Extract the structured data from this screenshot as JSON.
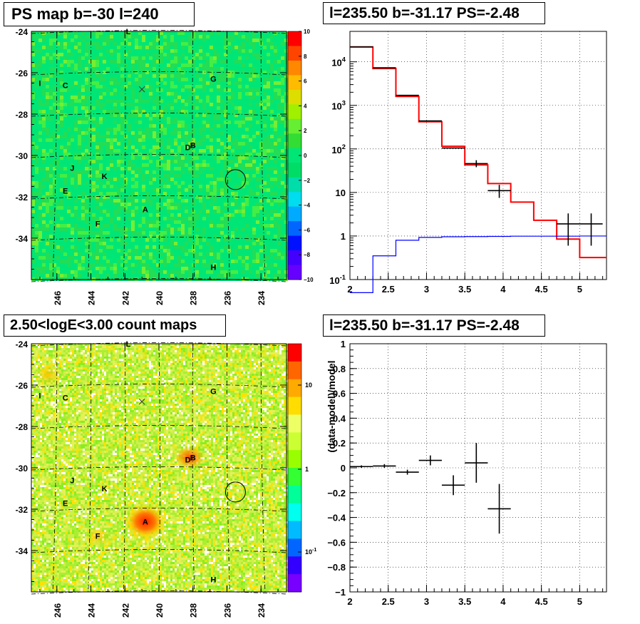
{
  "panels": {
    "psmap_title": "PS map b=-30 l=240",
    "spectrum_title": "l=235.50 b=-31.17 PS=-2.48",
    "countmap_title": "2.50<logE<3.00 count maps",
    "residual_title": "l=235.50 b=-31.17 PS=-2.48"
  },
  "chart_data": [
    {
      "type": "heatmap",
      "name": "ps_map",
      "title": "PS map b=-30 l=240",
      "x_ticks": [
        "246",
        "244",
        "242",
        "240",
        "238",
        "236",
        "234"
      ],
      "y_ticks": [
        "-24",
        "-26",
        "-28",
        "-30",
        "-32",
        "-34"
      ],
      "xlim": [
        247.5,
        232.5
      ],
      "ylim": [
        -36,
        -24
      ],
      "colorbar": {
        "min": -10,
        "max": 10,
        "ticks": [
          "10",
          "8",
          "6",
          "4",
          "2",
          "0",
          "−2",
          "−4",
          "−6",
          "−8",
          "−10"
        ]
      },
      "sources": [
        {
          "label": "L",
          "l": 241.8,
          "b": -24
        },
        {
          "label": "I",
          "l": 247,
          "b": -26.5
        },
        {
          "label": "C",
          "l": 245.5,
          "b": -26.6
        },
        {
          "label": "G",
          "l": 236.8,
          "b": -26.3
        },
        {
          "label": "D",
          "l": 238.3,
          "b": -29.6
        },
        {
          "label": "B",
          "l": 238,
          "b": -29.5
        },
        {
          "label": "J",
          "l": 245.1,
          "b": -30.6
        },
        {
          "label": "K",
          "l": 243.2,
          "b": -31
        },
        {
          "label": "E",
          "l": 245.5,
          "b": -31.7
        },
        {
          "label": "A",
          "l": 240.8,
          "b": -32.6
        },
        {
          "label": "F",
          "l": 243.6,
          "b": -33.3
        },
        {
          "label": "H",
          "l": 236.8,
          "b": -35.4
        }
      ],
      "marker_circle": {
        "l": 235.5,
        "b": -31.17
      },
      "marker_cross": {
        "l": 241,
        "b": -26.8
      }
    },
    {
      "type": "line",
      "name": "spectrum",
      "title": "l=235.50 b=-31.17 PS=-2.48",
      "xlim": [
        2,
        5.35
      ],
      "ylim": [
        0.1,
        50000
      ],
      "log_y": true,
      "x_ticks": [
        "2",
        "2.5",
        "3",
        "3.5",
        "4",
        "4.5",
        "5"
      ],
      "y_ticks": [
        "10^-1",
        "1",
        "10",
        "10^2",
        "10^3",
        "10^4"
      ],
      "grid": true,
      "series": [
        {
          "color": "#ff0000",
          "edges": [
            2,
            2.3,
            2.6,
            2.9,
            3.2,
            3.5,
            3.8,
            4.1,
            4.4,
            4.7,
            5.0,
            5.35
          ],
          "values": [
            22000,
            7000,
            1600,
            420,
            115,
            43,
            16,
            6,
            2.3,
            0.85,
            0.32
          ]
        },
        {
          "color": "#0000ff",
          "edges": [
            2,
            2.3,
            2.6,
            2.9,
            3.2,
            3.5,
            3.8,
            4.1,
            4.4,
            4.7,
            5.0,
            5.35
          ],
          "values": [
            0.05,
            0.35,
            0.8,
            0.93,
            0.96,
            0.97,
            0.98,
            0.99,
            0.99,
            0.99,
            1.0
          ]
        },
        {
          "color": "#000000",
          "points": [
            {
              "x": 2.15,
              "y": 22000,
              "xerr": 0.15
            },
            {
              "x": 2.45,
              "y": 7300,
              "xerr": 0.15
            },
            {
              "x": 2.75,
              "y": 1700,
              "xerr": 0.15
            },
            {
              "x": 3.05,
              "y": 440,
              "xerr": 0.15
            },
            {
              "x": 3.35,
              "y": 105,
              "xerr": 0.15
            },
            {
              "x": 3.65,
              "y": 46,
              "xerr": 0.15,
              "yerr": [
                38,
                55
              ]
            },
            {
              "x": 3.95,
              "y": 11,
              "xerr": 0.15,
              "yerr": [
                7.5,
                15
              ]
            },
            {
              "x": 4.85,
              "y": 1.9,
              "xerr": 0.15,
              "yerr": [
                0.6,
                3.3
              ]
            },
            {
              "x": 5.15,
              "y": 1.9,
              "xerr": 0.15,
              "yerr": [
                0.6,
                3.3
              ]
            }
          ]
        }
      ]
    },
    {
      "type": "heatmap",
      "name": "count_map",
      "title": "2.50<logE<3.00 count maps",
      "x_ticks": [
        "246",
        "244",
        "242",
        "240",
        "238",
        "236",
        "234"
      ],
      "y_ticks": [
        "-24",
        "-26",
        "-28",
        "-30",
        "-32",
        "-34"
      ],
      "xlim": [
        247.5,
        232.5
      ],
      "ylim": [
        -36,
        -24
      ],
      "colorbar": {
        "log": true,
        "ticks": [
          "10",
          "1",
          "10^-1"
        ]
      },
      "bright_spots": [
        {
          "label": "A",
          "l": 240.8,
          "b": -32.6
        },
        {
          "label": "DB",
          "l": 238.2,
          "b": -29.5
        }
      ]
    },
    {
      "type": "scatter",
      "name": "residual",
      "title": "l=235.50 b=-31.17 PS=-2.48",
      "ylabel": "(data-model)/model",
      "xlim": [
        2,
        5.35
      ],
      "ylim": [
        -1,
        1
      ],
      "x_ticks": [
        "2",
        "2.5",
        "3",
        "3.5",
        "4",
        "4.5",
        "5"
      ],
      "y_ticks": [
        "1",
        "0.8",
        "0.6",
        "0.4",
        "0.2",
        "0",
        "−0.2",
        "−0.4",
        "−0.6",
        "−0.8",
        "−1"
      ],
      "grid": true,
      "points": [
        {
          "x": 2.15,
          "y": 0.01,
          "xerr": 0.15,
          "yerr": 0.01
        },
        {
          "x": 2.45,
          "y": 0.015,
          "xerr": 0.15,
          "yerr": 0.015
        },
        {
          "x": 2.75,
          "y": -0.035,
          "xerr": 0.15,
          "yerr": 0.02
        },
        {
          "x": 3.05,
          "y": 0.06,
          "xerr": 0.15,
          "yerr": 0.04
        },
        {
          "x": 3.35,
          "y": -0.14,
          "xerr": 0.15,
          "yerr": 0.08
        },
        {
          "x": 3.65,
          "y": 0.04,
          "xerr": 0.15,
          "yerr": 0.16
        },
        {
          "x": 3.95,
          "y": -0.33,
          "xerr": 0.15,
          "yerr": 0.2
        }
      ]
    }
  ]
}
